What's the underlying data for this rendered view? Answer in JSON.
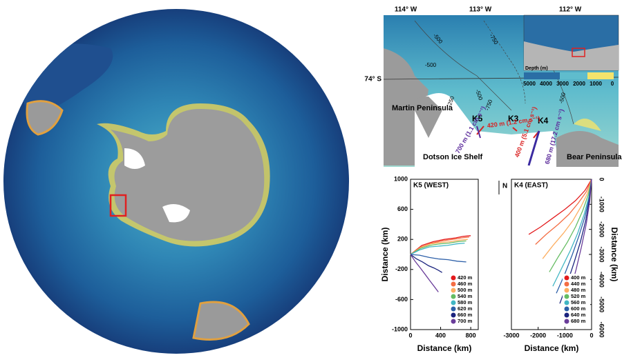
{
  "regional_map": {
    "lon_labels": [
      "114° W",
      "113° W",
      "112° W"
    ],
    "lat_label": "74° S",
    "contour_labels": [
      "-500",
      "-750",
      "-500",
      "-250",
      "-750",
      "-500",
      "-500"
    ],
    "places": [
      "Martin Peninsula",
      "Dotson Ice Shelf",
      "Bear Peninsula"
    ],
    "moorings": [
      "K5",
      "K3",
      "K4"
    ],
    "current_labels": [
      "420 m (1.2 cm s⁻¹)",
      "700 m (1.1 cm s⁻¹)",
      "400 m (5.1 cm s⁻¹)",
      "680 m (17.2 cm s⁻¹)"
    ],
    "colorbar": {
      "title": "Depth (m)",
      "ticks": [
        5000,
        4000,
        3000,
        2000,
        1000,
        0
      ]
    }
  },
  "north_label": "N",
  "chart_data": [
    {
      "type": "line",
      "title": "K5 (WEST)",
      "x_label": "Distance (km)",
      "y_label": "Distance (km)",
      "xlim": [
        0,
        900
      ],
      "ylim": [
        -1000,
        1000
      ],
      "xticks": [
        0,
        400,
        800
      ],
      "yticks": [
        -1000,
        -600,
        -200,
        200,
        600,
        1000
      ],
      "series": [
        {
          "name": "420 m",
          "color": "#e31a1c",
          "x": [
            0,
            150,
            300,
            450,
            600,
            700,
            800
          ],
          "values": [
            0,
            120,
            170,
            200,
            220,
            240,
            250
          ]
        },
        {
          "name": "460 m",
          "color": "#f46d43",
          "x": [
            0,
            140,
            280,
            420,
            560,
            680,
            780
          ],
          "values": [
            0,
            100,
            150,
            180,
            200,
            220,
            230
          ]
        },
        {
          "name": "500 m",
          "color": "#fdae61",
          "x": [
            0,
            130,
            270,
            400,
            530,
            650,
            760
          ],
          "values": [
            0,
            90,
            140,
            160,
            170,
            190,
            200
          ]
        },
        {
          "name": "540 m",
          "color": "#66bd63",
          "x": [
            0,
            130,
            260,
            390,
            510,
            630,
            740
          ],
          "values": [
            0,
            80,
            120,
            140,
            150,
            170,
            180
          ]
        },
        {
          "name": "580 m",
          "color": "#41b6c4",
          "x": [
            0,
            120,
            250,
            370,
            490,
            610,
            720
          ],
          "values": [
            0,
            60,
            100,
            110,
            120,
            140,
            150
          ]
        },
        {
          "name": "620 m",
          "color": "#2c5fa8",
          "x": [
            0,
            120,
            250,
            370,
            500,
            620,
            740
          ],
          "values": [
            0,
            -10,
            -40,
            -60,
            -70,
            -90,
            -100
          ]
        },
        {
          "name": "660 m",
          "color": "#1a237e",
          "x": [
            0,
            80,
            160,
            240,
            310,
            370,
            420
          ],
          "values": [
            0,
            -60,
            -100,
            -150,
            -180,
            -210,
            -240
          ]
        },
        {
          "name": "700 m",
          "color": "#6a3d9a",
          "x": [
            0,
            60,
            130,
            190,
            250,
            310,
            370
          ],
          "values": [
            0,
            -90,
            -180,
            -260,
            -340,
            -420,
            -500
          ]
        }
      ]
    },
    {
      "type": "line",
      "title": "K4 (EAST)",
      "x_label": "Distance (km)",
      "y_label": "Distance (km)",
      "xlim": [
        -3000,
        0
      ],
      "ylim": [
        -6000,
        0
      ],
      "xticks": [
        -3000,
        -2000,
        -1000,
        0
      ],
      "yticks": [
        0,
        -1000,
        -2000,
        -3000,
        -4000,
        -5000,
        -6000
      ],
      "series": [
        {
          "name": "400 m",
          "color": "#e31a1c",
          "x": [
            0,
            -250,
            -600,
            -1000,
            -1450,
            -1900,
            -2350
          ],
          "values": [
            0,
            -450,
            -850,
            -1200,
            -1550,
            -1900,
            -2200
          ]
        },
        {
          "name": "440 m",
          "color": "#f46d43",
          "x": [
            0,
            -200,
            -500,
            -850,
            -1250,
            -1700,
            -2100
          ],
          "values": [
            0,
            -500,
            -950,
            -1400,
            -1800,
            -2200,
            -2600
          ]
        },
        {
          "name": "480 m",
          "color": "#fdae61",
          "x": [
            0,
            -150,
            -400,
            -700,
            -1050,
            -1450,
            -1830
          ],
          "values": [
            0,
            -550,
            -1100,
            -1650,
            -2150,
            -2650,
            -3170
          ]
        },
        {
          "name": "520 m",
          "color": "#66bd63",
          "x": [
            0,
            -120,
            -330,
            -600,
            -900,
            -1250,
            -1580
          ],
          "values": [
            0,
            -600,
            -1250,
            -1900,
            -2500,
            -3100,
            -3700
          ]
        },
        {
          "name": "560 m",
          "color": "#41b6c4",
          "x": [
            0,
            -100,
            -280,
            -520,
            -800,
            -1120,
            -1450
          ],
          "values": [
            0,
            -700,
            -1400,
            -2150,
            -2850,
            -3550,
            -4270
          ]
        },
        {
          "name": "600 m",
          "color": "#2c5fa8",
          "x": [
            0,
            -90,
            -250,
            -470,
            -720,
            -1010,
            -1320
          ],
          "values": [
            0,
            -750,
            -1500,
            -2250,
            -3000,
            -3800,
            -4550
          ]
        },
        {
          "name": "640 m",
          "color": "#1a237e",
          "x": [
            0,
            -80,
            -220,
            -420,
            -650,
            -910,
            -1190
          ],
          "values": [
            0,
            -800,
            -1650,
            -2500,
            -3300,
            -4150,
            -4960
          ]
        },
        {
          "name": "680 m",
          "color": "#6a3d9a",
          "x": [
            0,
            -70,
            -200,
            -380,
            -580,
            -810,
            -1060
          ],
          "values": [
            0,
            -880,
            -1780,
            -2700,
            -3600,
            -4500,
            -5370
          ]
        }
      ]
    }
  ]
}
